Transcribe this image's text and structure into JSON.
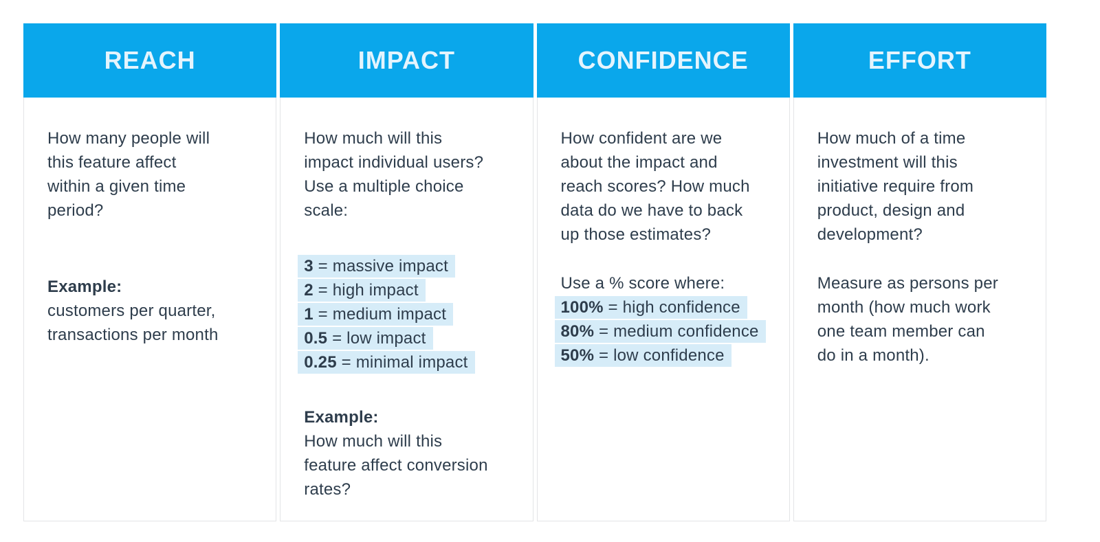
{
  "colors": {
    "header_bg": "#0AA7EB",
    "header_text": "#E4F4FD",
    "highlight_bg": "#D6ECF8",
    "body_text": "#2E3D4C",
    "cell_border": "#E3E4E6",
    "page_bg": "#FFFFFF"
  },
  "columns": {
    "reach": {
      "header": "REACH",
      "question": "How many people will\nthis feature affect\nwithin a given time\nperiod?",
      "example_label": "Example:",
      "example_text": "customers per quarter,\ntransactions per month"
    },
    "impact": {
      "header": "IMPACT",
      "question": "How much will this\nimpact individual users?\nUse a multiple choice\nscale:",
      "scale": [
        {
          "value": "3",
          "rest": " = massive impact"
        },
        {
          "value": "2",
          "rest": " = high impact"
        },
        {
          "value": "1",
          "rest": " = medium impact"
        },
        {
          "value": "0.5",
          "rest": " = low impact"
        },
        {
          "value": "0.25",
          "rest": " = minimal impact"
        }
      ],
      "example_label": "Example:",
      "example_text": "How much will this\nfeature affect conversion\nrates?"
    },
    "confidence": {
      "header": "CONFIDENCE",
      "question": "How confident are we\nabout the impact and\nreach scores? How much\ndata do we have to back\nup those estimates?",
      "scale_intro": "Use a % score where:",
      "scale": [
        {
          "value": "100%",
          "rest": " = high confidence"
        },
        {
          "value": "80%",
          "rest": " = medium confidence"
        },
        {
          "value": "50%",
          "rest": " = low confidence"
        }
      ]
    },
    "effort": {
      "header": "EFFORT",
      "question": "How much of a time\ninvestment will this\ninitiative require from\nproduct, design and\ndevelopment?",
      "detail": "Measure as persons per\nmonth (how much work\none team member can\ndo in a month)."
    }
  }
}
